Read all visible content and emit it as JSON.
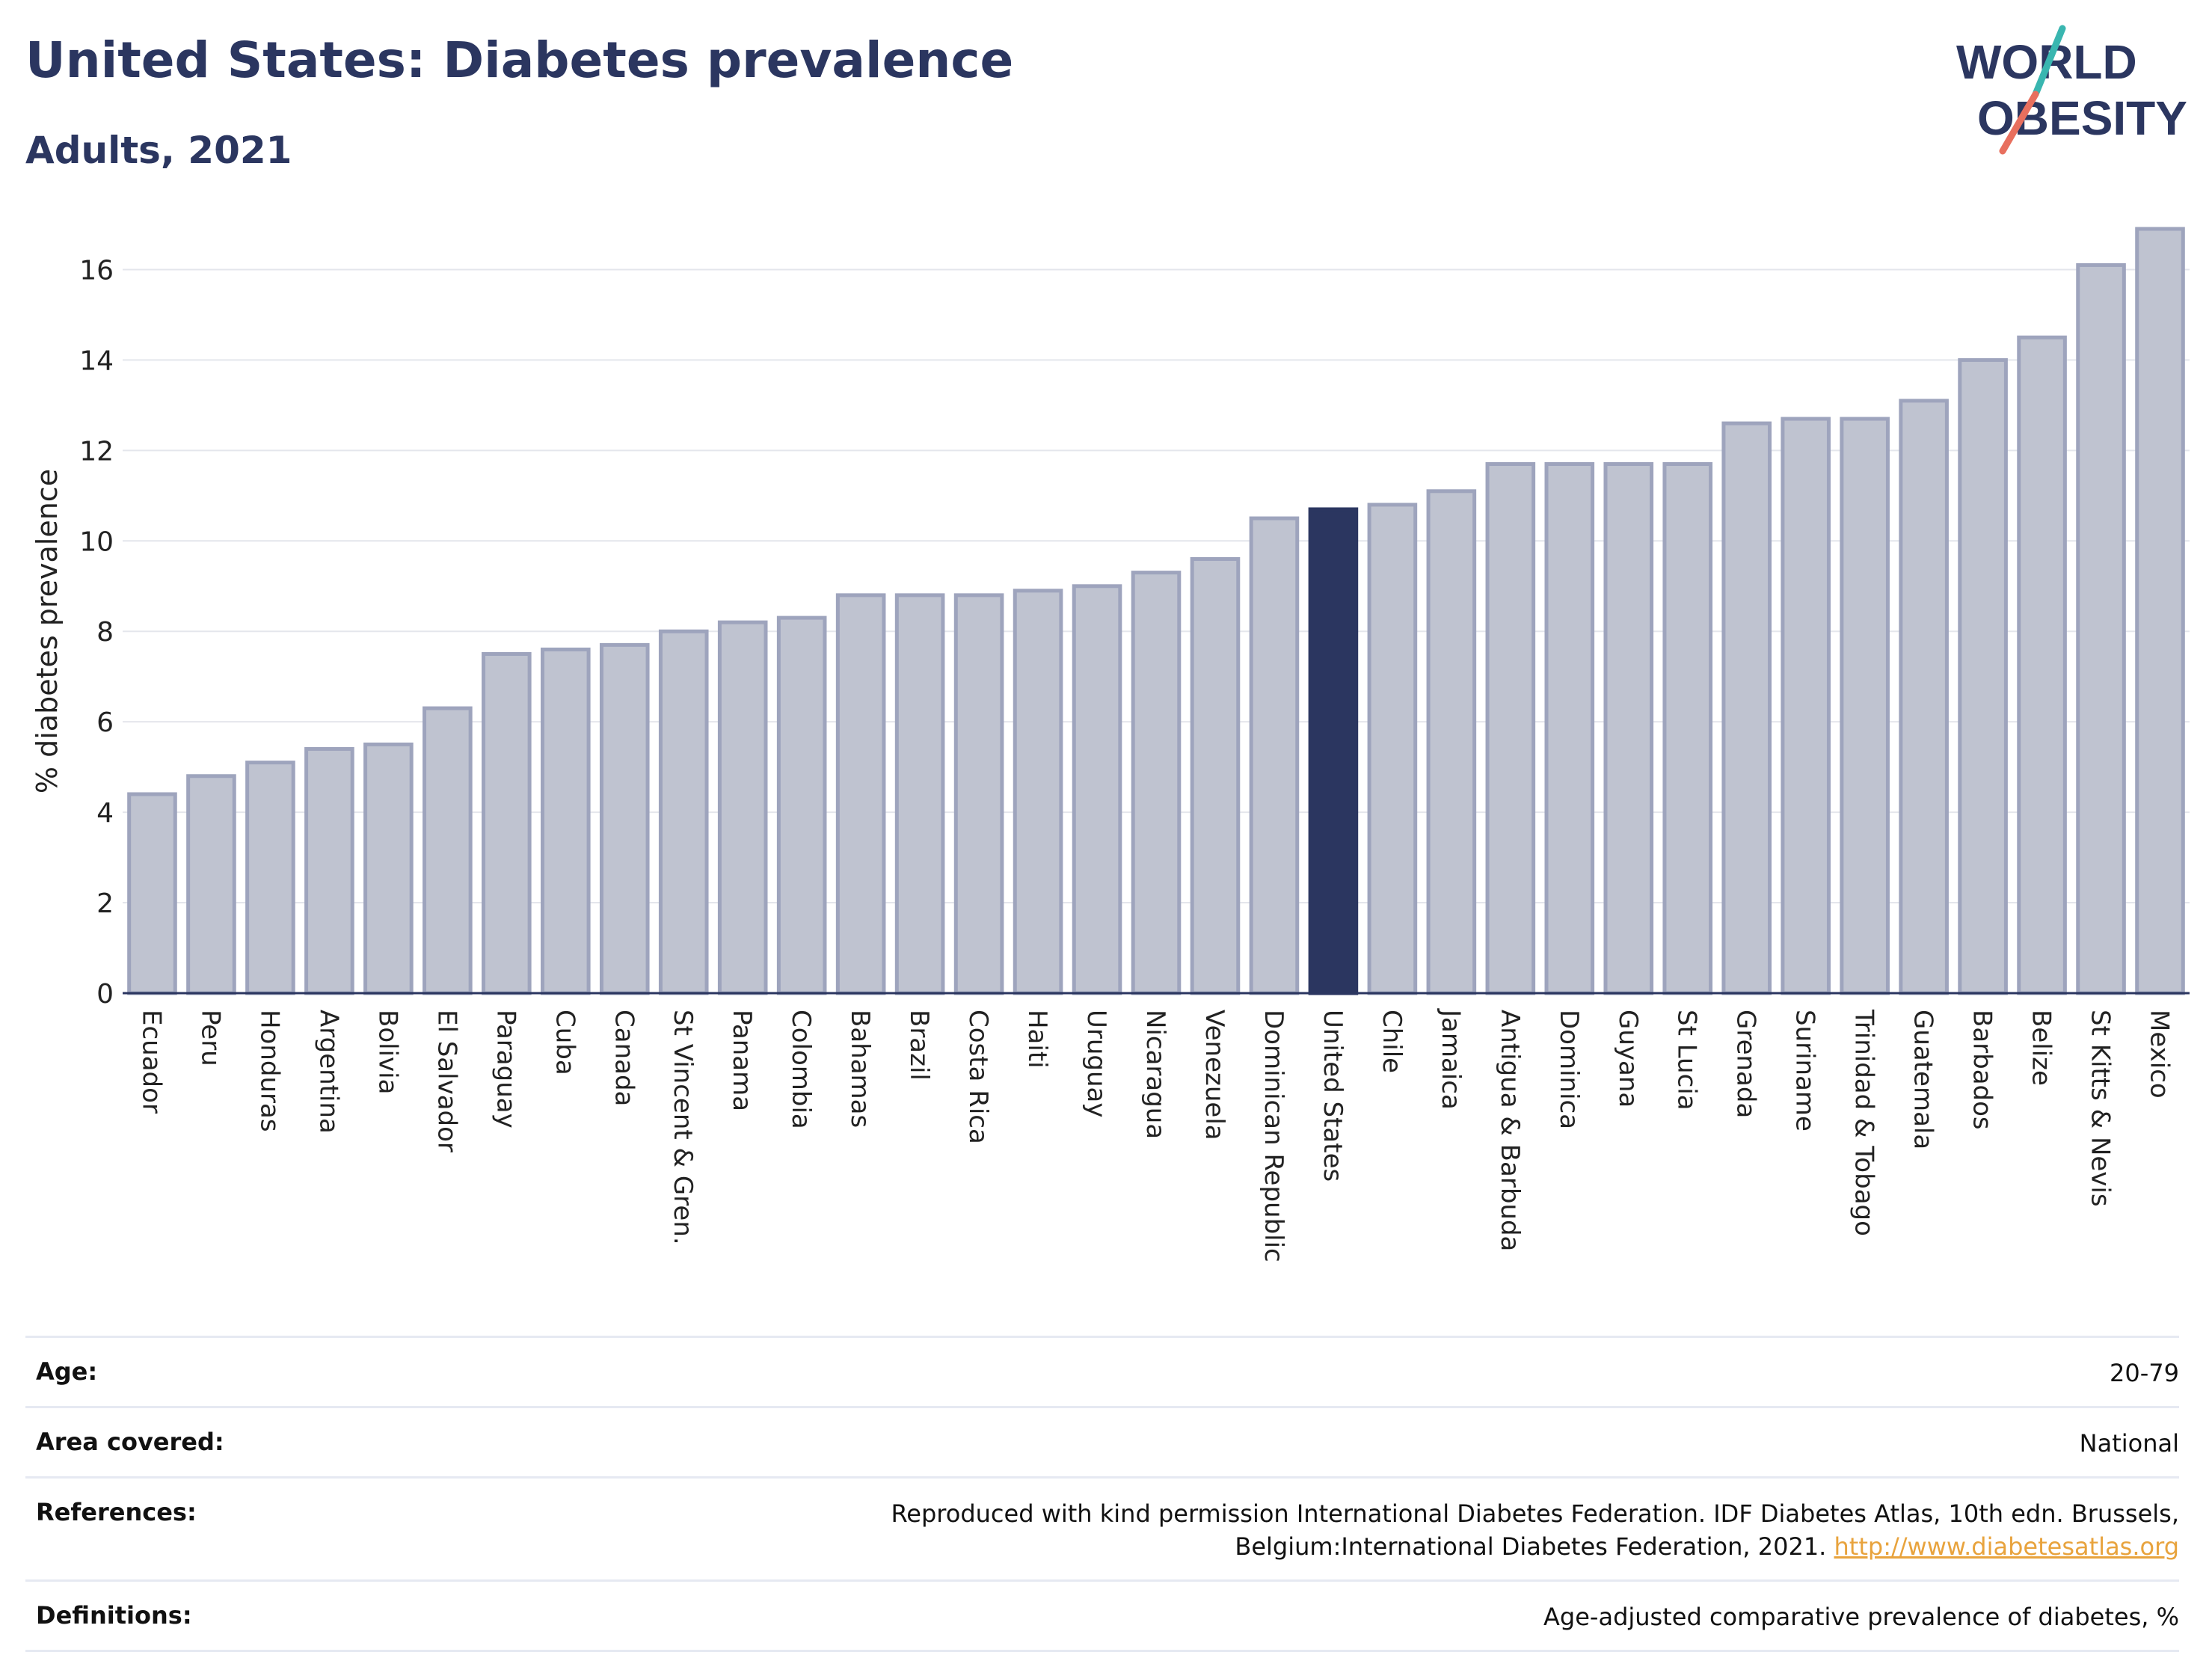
{
  "header": {
    "title": "United States: Diabetes prevalence",
    "subtitle": "Adults, 2021"
  },
  "logo": {
    "line1": "WORLD",
    "line2": "OBESITY"
  },
  "colors": {
    "highlight_bar": "#2b3660",
    "other_bar": "#bfc3d0",
    "bar_stroke": "#9ea4bd",
    "title": "#2b3660",
    "link": "#e8a33d",
    "logo_teal": "#39b6b0",
    "logo_coral": "#e86f5e"
  },
  "chart_data": {
    "type": "bar",
    "title": "United States: Diabetes prevalence",
    "subtitle": "Adults, 2021",
    "xlabel": "",
    "ylabel": "% diabetes prevalence",
    "ylim": [
      0,
      17
    ],
    "yticks": [
      0,
      2,
      4,
      6,
      8,
      10,
      12,
      14,
      16
    ],
    "grid": true,
    "highlight": "United States",
    "categories": [
      "Ecuador",
      "Peru",
      "Honduras",
      "Argentina",
      "Bolivia",
      "El Salvador",
      "Paraguay",
      "Cuba",
      "Canada",
      "St Vincent & Gren.",
      "Panama",
      "Colombia",
      "Bahamas",
      "Brazil",
      "Costa Rica",
      "Haiti",
      "Uruguay",
      "Nicaragua",
      "Venezuela",
      "Dominican Republic",
      "United States",
      "Chile",
      "Jamaica",
      "Antigua & Barbuda",
      "Dominica",
      "Guyana",
      "St Lucia",
      "Grenada",
      "Suriname",
      "Trinidad & Tobago",
      "Guatemala",
      "Barbados",
      "Belize",
      "St Kitts & Nevis",
      "Mexico"
    ],
    "values": [
      4.4,
      4.8,
      5.1,
      5.4,
      5.5,
      6.3,
      7.5,
      7.6,
      7.7,
      8.0,
      8.2,
      8.3,
      8.8,
      8.8,
      8.8,
      8.9,
      9.0,
      9.3,
      9.6,
      10.5,
      10.7,
      10.8,
      11.1,
      11.7,
      11.7,
      11.7,
      11.7,
      12.6,
      12.7,
      12.7,
      13.1,
      14.0,
      14.5,
      16.1,
      16.9
    ]
  },
  "info": {
    "age_label": "Age:",
    "age_value": "20-79",
    "area_label": "Area covered:",
    "area_value": "National",
    "references_label": "References:",
    "references_text": "Reproduced with kind permission International Diabetes Federation.  IDF Diabetes Atlas, 10th edn. Brussels, Belgium:International Diabetes Federation, 2021.",
    "references_link": "http://www.diabetesatlas.org",
    "definitions_label": "Definitions:",
    "definitions_value": "Age-adjusted comparative prevalence of diabetes, %"
  }
}
